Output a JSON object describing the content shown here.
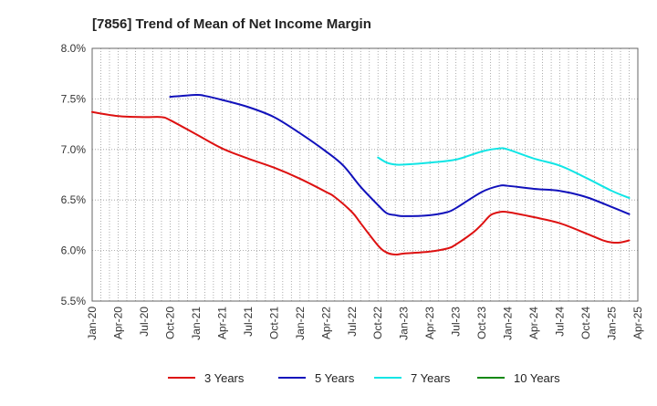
{
  "chart_data": {
    "type": "line",
    "title": "[7856]  Trend of Mean of Net Income Margin",
    "xlabel": "",
    "ylabel": "",
    "ylim": [
      5.5,
      8.0
    ],
    "xlim": [
      "2020-01",
      "2025-04"
    ],
    "grid": true,
    "legend_position": "bottom",
    "y_ticks": [
      "5.5%",
      "6.0%",
      "6.5%",
      "7.0%",
      "7.5%",
      "8.0%"
    ],
    "y_tick_values": [
      5.5,
      6.0,
      6.5,
      7.0,
      7.5,
      8.0
    ],
    "x_ticks": [
      "Jan-20",
      "Apr-20",
      "Jul-20",
      "Oct-20",
      "Jan-21",
      "Apr-21",
      "Jul-21",
      "Oct-21",
      "Jan-22",
      "Apr-22",
      "Jul-22",
      "Oct-22",
      "Jan-23",
      "Apr-23",
      "Jul-23",
      "Oct-23",
      "Jan-24",
      "Apr-24",
      "Jul-24",
      "Oct-24",
      "Jan-25",
      "Apr-25"
    ],
    "x_tick_values": [
      "2020-01",
      "2020-04",
      "2020-07",
      "2020-10",
      "2021-01",
      "2021-04",
      "2021-07",
      "2021-10",
      "2022-01",
      "2022-04",
      "2022-07",
      "2022-10",
      "2023-01",
      "2023-04",
      "2023-07",
      "2023-10",
      "2024-01",
      "2024-04",
      "2024-07",
      "2024-10",
      "2025-01",
      "2025-04"
    ],
    "series": [
      {
        "name": "3 Years",
        "color": "#dd1111",
        "points": [
          [
            "2020-01",
            7.37
          ],
          [
            "2020-04",
            7.33
          ],
          [
            "2020-07",
            7.32
          ],
          [
            "2020-09",
            7.32
          ],
          [
            "2020-10",
            7.29
          ],
          [
            "2021-01",
            7.15
          ],
          [
            "2021-04",
            7.01
          ],
          [
            "2021-07",
            6.91
          ],
          [
            "2021-10",
            6.82
          ],
          [
            "2022-01",
            6.71
          ],
          [
            "2022-04",
            6.58
          ],
          [
            "2022-05",
            6.53
          ],
          [
            "2022-07",
            6.38
          ],
          [
            "2022-08",
            6.27
          ],
          [
            "2022-10",
            6.05
          ],
          [
            "2022-11",
            5.98
          ],
          [
            "2022-12",
            5.96
          ],
          [
            "2023-01",
            5.97
          ],
          [
            "2023-04",
            5.99
          ],
          [
            "2023-06",
            6.02
          ],
          [
            "2023-07",
            6.06
          ],
          [
            "2023-09",
            6.18
          ],
          [
            "2023-10",
            6.26
          ],
          [
            "2023-11",
            6.35
          ],
          [
            "2023-12",
            6.38
          ],
          [
            "2024-01",
            6.38
          ],
          [
            "2024-04",
            6.33
          ],
          [
            "2024-07",
            6.27
          ],
          [
            "2024-10",
            6.17
          ],
          [
            "2024-12",
            6.1
          ],
          [
            "2025-01",
            6.08
          ],
          [
            "2025-02",
            6.08
          ],
          [
            "2025-03",
            6.1
          ]
        ]
      },
      {
        "name": "5 Years",
        "color": "#1111bb",
        "points": [
          [
            "2020-10",
            7.52
          ],
          [
            "2021-01",
            7.54
          ],
          [
            "2021-02",
            7.53
          ],
          [
            "2021-04",
            7.49
          ],
          [
            "2021-07",
            7.42
          ],
          [
            "2021-10",
            7.32
          ],
          [
            "2022-01",
            7.16
          ],
          [
            "2022-04",
            6.98
          ],
          [
            "2022-06",
            6.84
          ],
          [
            "2022-08",
            6.63
          ],
          [
            "2022-10",
            6.45
          ],
          [
            "2022-11",
            6.37
          ],
          [
            "2022-12",
            6.35
          ],
          [
            "2023-01",
            6.34
          ],
          [
            "2023-04",
            6.35
          ],
          [
            "2023-06",
            6.38
          ],
          [
            "2023-07",
            6.42
          ],
          [
            "2023-10",
            6.58
          ],
          [
            "2023-12",
            6.64
          ],
          [
            "2024-01",
            6.64
          ],
          [
            "2024-04",
            6.61
          ],
          [
            "2024-07",
            6.59
          ],
          [
            "2024-10",
            6.53
          ],
          [
            "2025-01",
            6.43
          ],
          [
            "2025-03",
            6.36
          ]
        ]
      },
      {
        "name": "7 Years",
        "color": "#11e5e5",
        "points": [
          [
            "2022-10",
            6.92
          ],
          [
            "2022-11",
            6.87
          ],
          [
            "2022-12",
            6.85
          ],
          [
            "2023-01",
            6.85
          ],
          [
            "2023-04",
            6.87
          ],
          [
            "2023-07",
            6.9
          ],
          [
            "2023-10",
            6.98
          ],
          [
            "2023-12",
            7.01
          ],
          [
            "2024-01",
            7.0
          ],
          [
            "2024-04",
            6.91
          ],
          [
            "2024-07",
            6.84
          ],
          [
            "2024-10",
            6.72
          ],
          [
            "2025-01",
            6.59
          ],
          [
            "2025-03",
            6.52
          ]
        ]
      },
      {
        "name": "10 Years",
        "color": "#118811",
        "points": []
      }
    ]
  }
}
